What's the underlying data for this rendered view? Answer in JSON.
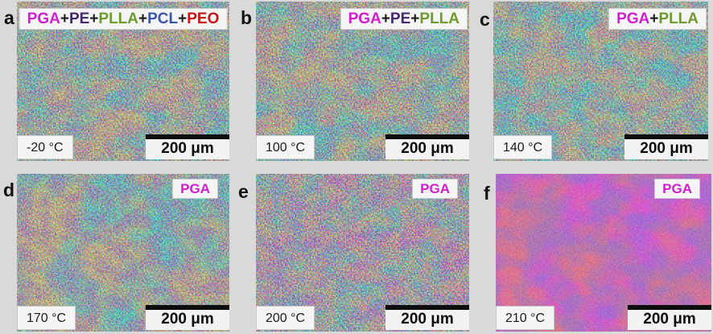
{
  "figure": {
    "background_color": "#d9d9d9",
    "description_colors": {
      "pga": "#d11ed1",
      "pe": "#45286e",
      "plla": "#6f9a2c",
      "pcl": "#3a56a8",
      "peo": "#cc1414",
      "plus": "#1a1a1a"
    },
    "panels": [
      {
        "letter": "a",
        "temperature": "-20 °C",
        "scale_label": "200 μm",
        "composition": [
          {
            "text": "PGA",
            "color": "#d11ed1"
          },
          {
            "text": "+",
            "color": "#1a1a1a"
          },
          {
            "text": "PE",
            "color": "#45286e"
          },
          {
            "text": "+",
            "color": "#1a1a1a"
          },
          {
            "text": "PLLA",
            "color": "#6f9a2c"
          },
          {
            "text": "+",
            "color": "#1a1a1a"
          },
          {
            "text": "PCL",
            "color": "#3a56a8"
          },
          {
            "text": "+",
            "color": "#1a1a1a"
          },
          {
            "text": "PEO",
            "color": "#cc1414"
          }
        ]
      },
      {
        "letter": "b",
        "temperature": "100 °C",
        "scale_label": "200 μm",
        "composition": [
          {
            "text": "PGA",
            "color": "#d11ed1"
          },
          {
            "text": "+",
            "color": "#1a1a1a"
          },
          {
            "text": "PE",
            "color": "#45286e"
          },
          {
            "text": "+",
            "color": "#1a1a1a"
          },
          {
            "text": "PLLA",
            "color": "#6f9a2c"
          }
        ]
      },
      {
        "letter": "c",
        "temperature": "140 °C",
        "scale_label": "200 μm",
        "composition": [
          {
            "text": "PGA",
            "color": "#d11ed1"
          },
          {
            "text": "+",
            "color": "#1a1a1a"
          },
          {
            "text": "PLLA",
            "color": "#6f9a2c"
          }
        ]
      },
      {
        "letter": "d",
        "temperature": "170 °C",
        "scale_label": "200 μm",
        "composition": [
          {
            "text": "PGA",
            "color": "#d11ed1"
          }
        ]
      },
      {
        "letter": "e",
        "temperature": "200 °C",
        "scale_label": "200 μm",
        "composition": [
          {
            "text": "PGA",
            "color": "#d11ed1"
          }
        ]
      },
      {
        "letter": "f",
        "temperature": "210 °C",
        "scale_label": "200 μm",
        "composition": [
          {
            "text": "PGA",
            "color": "#d11ed1"
          }
        ]
      }
    ]
  }
}
